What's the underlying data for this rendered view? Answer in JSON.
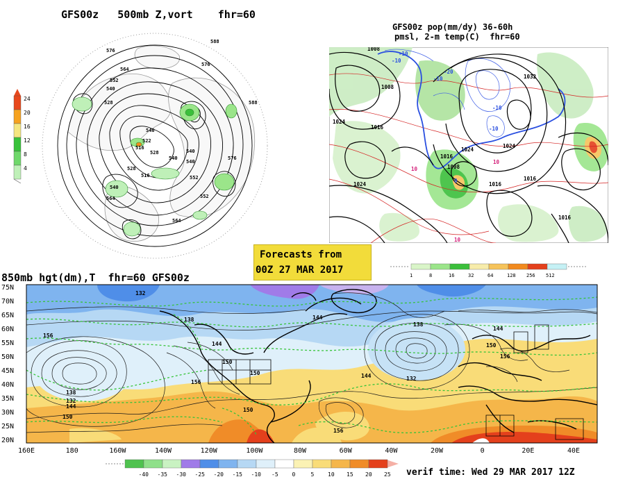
{
  "panel_500mb": {
    "title": "GFS00z   500mb Z,vort    fhr=60",
    "colorbar": {
      "ticks": [
        "24",
        "20",
        "16",
        "12",
        "8",
        "4"
      ],
      "colors": [
        "#e8481c",
        "#f6a21f",
        "#f4e680",
        "#38c23a",
        "#6fd86a",
        "#bff0b8"
      ]
    },
    "contour_labels": [
      "576",
      "588",
      "576",
      "564",
      "552",
      "540",
      "528",
      "540",
      "522",
      "528",
      "516",
      "540",
      "540",
      "540",
      "552",
      "528",
      "516",
      "540",
      "552",
      "564",
      "576",
      "564",
      "588"
    ]
  },
  "panel_precip": {
    "title_line1": "GFS00z pop(mm/dy) 36-60h",
    "title_line2": "pmsl, 2-m temp(C)  fhr=60",
    "contour_labels": [
      "1008",
      "1008",
      "1024",
      "1016",
      "1024",
      "1016",
      "1008",
      "1016",
      "1016",
      "1016",
      "1024",
      "1024",
      "1032"
    ],
    "temp_labels": [
      "-10",
      "-10",
      "-20",
      "-10",
      "10",
      "10",
      "0",
      "-10",
      "-10",
      "10"
    ]
  },
  "forecast_box": {
    "line1": "Forecasts from",
    "line2": "00Z 27 MAR 2017"
  },
  "precip_colorbar": {
    "ticks": [
      "1",
      "8",
      "16",
      "32",
      "64",
      "128",
      "256",
      "512"
    ],
    "colors": [
      "#d9f5c8",
      "#9be58a",
      "#3bbf3b",
      "#f7ecaa",
      "#f6c35a",
      "#f28a1e",
      "#e4401c",
      "#c5f1f5"
    ]
  },
  "panel_850mb": {
    "title": "850mb hgt(dm),T  fhr=60 GFS00z",
    "lat_labels": [
      "75N",
      "70N",
      "65N",
      "60N",
      "55N",
      "50N",
      "45N",
      "40N",
      "35N",
      "30N",
      "25N",
      "20N"
    ],
    "lon_labels": [
      "160E",
      "180",
      "160W",
      "140W",
      "120W",
      "100W",
      "80W",
      "60W",
      "40W",
      "20W",
      "0",
      "20E",
      "40E"
    ],
    "contour_labels": [
      "132",
      "138",
      "144",
      "156",
      "144",
      "150",
      "150",
      "156",
      "144",
      "150",
      "138",
      "132",
      "144",
      "150",
      "156",
      "132",
      "138",
      "144",
      "150",
      "156"
    ]
  },
  "temp_colorbar": {
    "ticks": [
      "-40",
      "-35",
      "-30",
      "-25",
      "-20",
      "-15",
      "-10",
      "-5",
      "0",
      "5",
      "10",
      "15",
      "20",
      "25"
    ],
    "colors": [
      "#4fc24f",
      "#8fe08a",
      "#c9f2c2",
      "#a07be8",
      "#4f8ee8",
      "#7fb4ef",
      "#b6d8f4",
      "#dff0fa",
      "#ffffff",
      "#fbf2b4",
      "#f9dc78",
      "#f5b64a",
      "#f08c28",
      "#e4401c"
    ]
  },
  "verif_time": "verif time: Wed 29 MAR 2017 12Z"
}
